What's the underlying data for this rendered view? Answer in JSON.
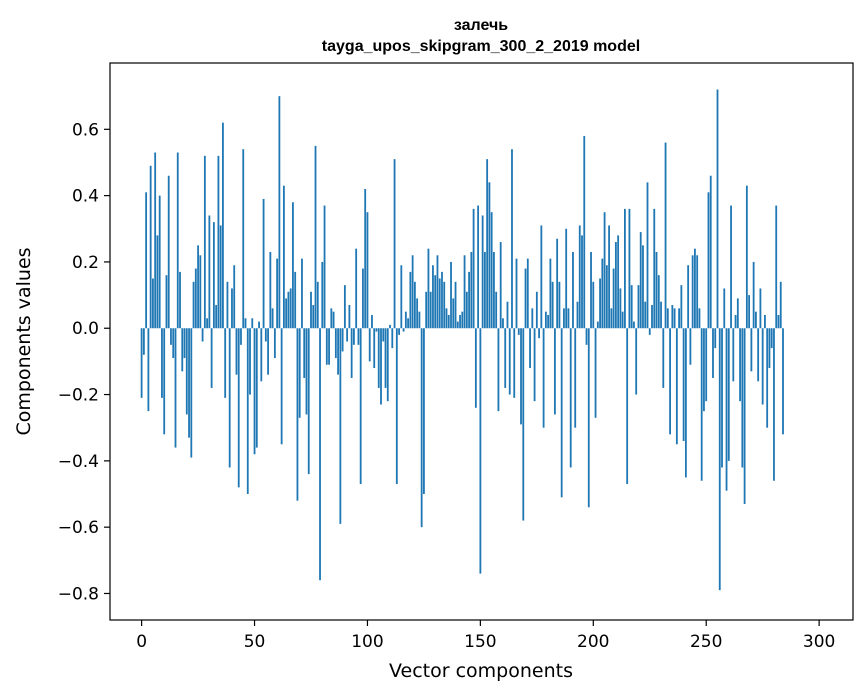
{
  "chart_data": {
    "type": "bar",
    "title_line1": "залечь",
    "title_line2": "tayga_upos_skipgram_300_2_2019 model",
    "xlabel": "Vector components",
    "ylabel": "Components values",
    "xlim": [
      -14,
      315
    ],
    "ylim": [
      -0.88,
      0.8
    ],
    "xticks": [
      0,
      50,
      100,
      150,
      200,
      250,
      300
    ],
    "xtick_labels": [
      "0",
      "50",
      "100",
      "150",
      "200",
      "250",
      "300"
    ],
    "yticks": [
      -0.8,
      -0.6,
      -0.4,
      -0.2,
      0.0,
      0.2,
      0.4,
      0.6
    ],
    "ytick_labels": [
      "−0.8",
      "−0.6",
      "−0.4",
      "−0.2",
      "0.0",
      "0.2",
      "0.4",
      "0.6"
    ],
    "grid": false,
    "bar_color": "#1f77b4",
    "values": [
      -0.21,
      -0.08,
      0.41,
      -0.25,
      0.49,
      0.15,
      0.53,
      0.28,
      0.4,
      -0.21,
      -0.32,
      0.16,
      0.46,
      -0.05,
      -0.09,
      -0.36,
      0.53,
      0.17,
      -0.13,
      -0.09,
      -0.26,
      -0.33,
      -0.39,
      0.14,
      0.18,
      0.25,
      0.22,
      -0.04,
      0.52,
      0.03,
      0.34,
      -0.18,
      0.32,
      0.07,
      0.52,
      0.31,
      0.62,
      -0.21,
      0.14,
      -0.42,
      0.12,
      0.19,
      -0.14,
      -0.48,
      -0.05,
      0.54,
      0.03,
      -0.5,
      -0.2,
      0.03,
      -0.38,
      -0.36,
      0.02,
      -0.16,
      0.39,
      -0.04,
      -0.14,
      0.23,
      0.06,
      -0.09,
      0.21,
      0.7,
      -0.35,
      0.43,
      0.09,
      0.11,
      0.12,
      0.38,
      0.17,
      -0.52,
      -0.27,
      0.21,
      -0.15,
      -0.26,
      -0.44,
      0.11,
      0.07,
      0.55,
      0.14,
      -0.76,
      0.2,
      0.37,
      -0.11,
      -0.11,
      0.06,
      0.05,
      -0.09,
      -0.14,
      -0.59,
      -0.07,
      0.13,
      -0.04,
      0.07,
      -0.15,
      -0.05,
      0.24,
      -0.05,
      -0.47,
      0.18,
      0.42,
      0.35,
      -0.1,
      0.04,
      -0.12,
      -0.01,
      -0.18,
      -0.23,
      -0.04,
      -0.18,
      -0.22,
      0.01,
      -0.06,
      0.51,
      -0.47,
      -0.02,
      0.19,
      -0.01,
      0.05,
      0.03,
      0.17,
      0.22,
      0.14,
      0.09,
      0.05,
      -0.6,
      -0.5,
      0.11,
      0.24,
      0.11,
      0.19,
      0.16,
      0.22,
      0.15,
      0.17,
      0.14,
      0.06,
      0.04,
      0.2,
      0.09,
      0.14,
      0.02,
      0.04,
      0.05,
      0.22,
      0.11,
      0.17,
      0.23,
      0.36,
      -0.24,
      0.37,
      -0.74,
      0.34,
      0.23,
      0.51,
      0.44,
      0.35,
      0.23,
      0.11,
      -0.25,
      0.26,
      0.03,
      -0.18,
      0.08,
      -0.2,
      0.54,
      -0.21,
      0.21,
      -0.02,
      -0.29,
      -0.58,
      0.18,
      0.21,
      -0.12,
      0.06,
      -0.22,
      0.11,
      -0.03,
      0.31,
      -0.3,
      0.05,
      0.04,
      0.21,
      0.14,
      -0.26,
      0.27,
      0.14,
      -0.51,
      0.06,
      0.3,
      0.06,
      -0.42,
      0.23,
      -0.3,
      0.08,
      0.31,
      0.28,
      0.58,
      -0.05,
      -0.54,
      0.23,
      0.14,
      -0.27,
      0.02,
      0.15,
      0.21,
      0.35,
      0.19,
      0.31,
      0.06,
      0.18,
      0.26,
      0.28,
      0.12,
      0.05,
      0.36,
      -0.47,
      0.36,
      0.13,
      0.02,
      -0.2,
      0.13,
      0.29,
      0.25,
      0.08,
      0.44,
      -0.02,
      0.07,
      0.36,
      0.23,
      0.16,
      0.08,
      -0.18,
      0.56,
      0.06,
      -0.32,
      0.07,
      0.06,
      -0.35,
      0.06,
      0.13,
      -0.34,
      -0.45,
      0.19,
      -0.11,
      0.22,
      0.24,
      0.22,
      0.06,
      -0.46,
      -0.25,
      -0.22,
      0.41,
      0.46,
      -0.15,
      -0.06,
      0.72,
      -0.79,
      -0.42,
      0.12,
      -0.49,
      -0.4,
      0.37,
      -0.16,
      0.04,
      0.09,
      -0.22,
      -0.42,
      -0.53,
      0.43,
      0.1,
      -0.13,
      0.2,
      0.05,
      -0.16,
      0.12,
      -0.23,
      0.04,
      -0.3,
      -0.12,
      -0.06,
      -0.46,
      0.37,
      0.04,
      0.14,
      -0.32
    ]
  }
}
